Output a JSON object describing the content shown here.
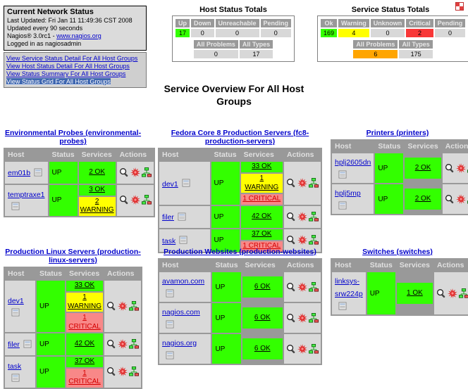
{
  "info_box": {
    "title": "Current Network Status",
    "last_updated": "Last Updated: Fri Jan 11 11:49:36 CST 2008",
    "update_interval": "Updated every 90 seconds",
    "version_prefix": "Nagios® 3.0rc1 - ",
    "version_link": "www.nagios.org",
    "logged_in": "Logged in as nagiosadmin",
    "links": [
      {
        "label": "View Service Status Detail For All Host Groups",
        "selected": false
      },
      {
        "label": "View Host Status Detail For All Host Groups",
        "selected": false
      },
      {
        "label": "View Status Summary For All Host Groups",
        "selected": false
      },
      {
        "label": "View Status Grid For All Host Groups",
        "selected": true
      }
    ]
  },
  "host_totals": {
    "title": "Host Status Totals",
    "columns": [
      {
        "label": "Up",
        "value": "17",
        "state": "up"
      },
      {
        "label": "Down",
        "value": "0",
        "state": "none"
      },
      {
        "label": "Unreachable",
        "value": "0",
        "state": "none"
      },
      {
        "label": "Pending",
        "value": "0",
        "state": "none"
      }
    ],
    "summary": [
      {
        "label": "All Problems",
        "value": "0",
        "state": "none"
      },
      {
        "label": "All Types",
        "value": "17",
        "state": "none"
      }
    ]
  },
  "service_totals": {
    "title": "Service Status Totals",
    "columns": [
      {
        "label": "Ok",
        "value": "169",
        "state": "ok"
      },
      {
        "label": "Warning",
        "value": "4",
        "state": "warning"
      },
      {
        "label": "Unknown",
        "value": "0",
        "state": "none"
      },
      {
        "label": "Critical",
        "value": "2",
        "state": "critical"
      },
      {
        "label": "Pending",
        "value": "0",
        "state": "none"
      }
    ],
    "summary": [
      {
        "label": "All Problems",
        "value": "6",
        "state": "problems"
      },
      {
        "label": "All Types",
        "value": "175",
        "state": "none"
      }
    ]
  },
  "page_title": "Service Overview For All Host Groups",
  "overview": {
    "table_headers": [
      "Host",
      "Status",
      "Services",
      "Actions"
    ],
    "action_icon_names": [
      "service-detail-icon",
      "status-splat-icon",
      "status-map-icon"
    ],
    "host_icon_name": "host-extinfo-icon",
    "groups": [
      {
        "name": "Environmental Probes",
        "alias": "(environmental-probes)",
        "rows": [
          {
            "host": "em01b",
            "status": "UP",
            "services": [
              {
                "label": "2 OK",
                "state": "ok"
              }
            ]
          },
          {
            "host": "temptraxe1",
            "status": "UP",
            "services": [
              {
                "label": "3 OK",
                "state": "ok"
              },
              {
                "label": "2 WARNING",
                "state": "warning"
              }
            ]
          }
        ]
      },
      {
        "name": "Fedora Core 8 Production Servers",
        "alias": "(fc8-production-servers)",
        "rows": [
          {
            "host": "dev1",
            "status": "UP",
            "services": [
              {
                "label": "33 OK",
                "state": "ok"
              },
              {
                "label": "1 WARNING",
                "state": "warning"
              },
              {
                "label": "1 CRITICAL",
                "state": "critical"
              }
            ]
          },
          {
            "host": "filer",
            "status": "UP",
            "services": [
              {
                "label": "42 OK",
                "state": "ok"
              }
            ]
          },
          {
            "host": "task",
            "status": "UP",
            "services": [
              {
                "label": "37 OK",
                "state": "ok"
              },
              {
                "label": "1 CRITICAL",
                "state": "critical"
              }
            ]
          }
        ]
      },
      {
        "name": "Printers",
        "alias": "(printers)",
        "rows": [
          {
            "host": "hplj2605dn",
            "status": "UP",
            "services": [
              {
                "label": "2 OK",
                "state": "ok"
              }
            ]
          },
          {
            "host": "hplj5mp",
            "status": "UP",
            "services": [
              {
                "label": "2 OK",
                "state": "ok"
              }
            ]
          }
        ]
      },
      {
        "name": "Production Linux Servers",
        "alias": "(production-linux-servers)",
        "rows": [
          {
            "host": "dev1",
            "status": "UP",
            "services": [
              {
                "label": "33 OK",
                "state": "ok"
              },
              {
                "label": "1 WARNING",
                "state": "warning"
              },
              {
                "label": "1 CRITICAL",
                "state": "critical"
              }
            ]
          },
          {
            "host": "filer",
            "status": "UP",
            "services": [
              {
                "label": "42 OK",
                "state": "ok"
              }
            ]
          },
          {
            "host": "task",
            "status": "UP",
            "services": [
              {
                "label": "37 OK",
                "state": "ok"
              },
              {
                "label": "1 CRITICAL",
                "state": "critical"
              }
            ]
          }
        ]
      },
      {
        "name": "Production Websites",
        "alias": "(production-websites)",
        "rows": [
          {
            "host": "avamon.com",
            "status": "UP",
            "services": [
              {
                "label": "6 OK",
                "state": "ok"
              }
            ]
          },
          {
            "host": "nagios.com",
            "status": "UP",
            "services": [
              {
                "label": "6 OK",
                "state": "ok"
              }
            ]
          },
          {
            "host": "nagios.org",
            "status": "UP",
            "services": [
              {
                "label": "6 OK",
                "state": "ok"
              }
            ]
          }
        ]
      },
      {
        "name": "Switches",
        "alias": "(switches)",
        "rows": [
          {
            "host": "linksys-srw224p",
            "status": "UP",
            "services": [
              {
                "label": "1 OK",
                "state": "ok"
              }
            ]
          }
        ]
      }
    ]
  },
  "colors": {
    "ok": "#33FF00",
    "warning": "#FFFF00",
    "critical_cell": "#F88888",
    "critical_total": "#F83838",
    "problems": "#FFA500",
    "header_bg": "#999999",
    "cell_bg": "#D9D9D9",
    "link": "#0000CC",
    "selected_link_bg": "#3E66B0"
  }
}
